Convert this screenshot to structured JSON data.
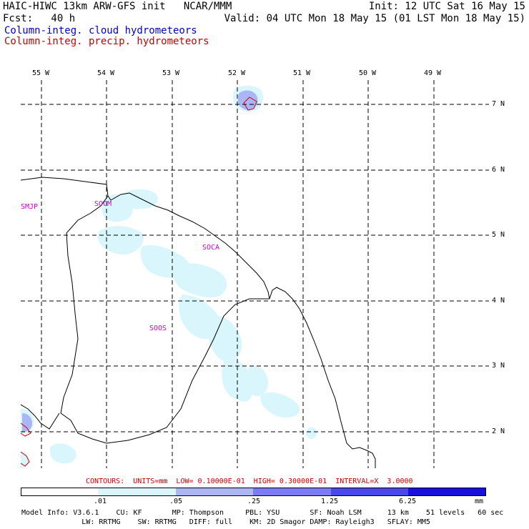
{
  "header": {
    "line1_left": "HAIC-HIWC 13km ARW-GFS init   NCAR/MMM",
    "line1_right": "Init: 12 UTC Sat 16 May 15",
    "line2_left": "Fcst:   40 h",
    "line2_right": "Valid: 04 UTC Mon 18 May 15 (01 LST Mon 18 May 15)",
    "field1": "Column-integ. cloud hydrometeors",
    "field2": "Column-integ. precip. hydrometeors"
  },
  "axes": {
    "lon_labels": [
      "55 W",
      "54 W",
      "53 W",
      "52 W",
      "51 W",
      "50 W",
      "49 W"
    ],
    "lat_labels": [
      "7 N",
      "6 N",
      "5 N",
      "4 N",
      "3 N",
      "2 N"
    ]
  },
  "stations": [
    "SMJP",
    "SOCM",
    "SOCA",
    "SOOS"
  ],
  "contours_line": "CONTOURS:  UNITS=mm  LOW= 0.10000E-01  HIGH= 0.30000E-01  INTERVAL=X  3.0000",
  "colorbar": {
    "ticks": [
      ".01",
      ".05",
      ".25",
      "1.25",
      "6.25"
    ],
    "unit": "mm",
    "colors": [
      "#ffffff",
      "#d8f6fc",
      "#aab6f7",
      "#7a7cf0",
      "#4a48e6",
      "#1a10dd"
    ]
  },
  "model_info": {
    "line1": "Model Info: V3.6.1    CU: KF       MP: Thompson     PBL: YSU       SF: Noah LSM      13 km    51 levels   60 sec",
    "line2": "              LW: RRTMG    SW: RRTMG   DIFF: full    KM: 2D Smagor DAMP: Rayleigh3   SFLAY: MM5"
  },
  "colors": {
    "cloud_fill": "#d8f6fc",
    "cloud_fill_mid": "#aab6f7",
    "precip_contour": "#dd0000",
    "coast": "#000000"
  }
}
